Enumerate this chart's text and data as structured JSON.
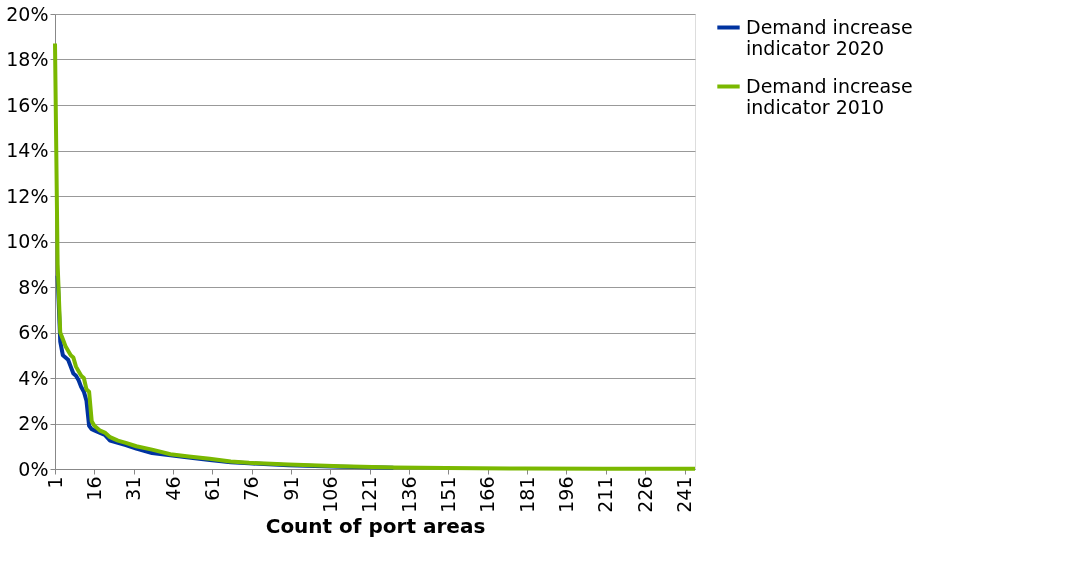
{
  "chart_data": {
    "type": "line",
    "xlabel": "Count of port areas",
    "xlim": [
      1,
      245
    ],
    "xticks": [
      1,
      16,
      31,
      46,
      61,
      76,
      91,
      106,
      121,
      136,
      151,
      166,
      181,
      196,
      211,
      226,
      241
    ],
    "ylim": [
      0,
      20
    ],
    "yticks": [
      {
        "value": 0,
        "label": "0%"
      },
      {
        "value": 2,
        "label": "2%"
      },
      {
        "value": 4,
        "label": "4%"
      },
      {
        "value": 6,
        "label": "6%"
      },
      {
        "value": 8,
        "label": "8%"
      },
      {
        "value": 10,
        "label": "10%"
      },
      {
        "value": 12,
        "label": "12%"
      },
      {
        "value": 14,
        "label": "14%"
      },
      {
        "value": 16,
        "label": "16%"
      },
      {
        "value": 18,
        "label": "18%"
      },
      {
        "value": 20,
        "label": "20%"
      }
    ],
    "grid": "y",
    "legend": "right",
    "marker": "none",
    "line_style": "solid",
    "series": [
      {
        "name": "Demand increase indicator 2020",
        "color": "#0033a0",
        "x": [
          2,
          3,
          4,
          5,
          6,
          7,
          8,
          9,
          10,
          11,
          12,
          13,
          14,
          15,
          16,
          18,
          20,
          22,
          25,
          28,
          32,
          38,
          45,
          52,
          60,
          68,
          75,
          90,
          110,
          130
        ],
        "values": [
          8.5,
          5.6,
          5.0,
          4.9,
          4.8,
          4.5,
          4.2,
          4.1,
          3.9,
          3.6,
          3.4,
          3.0,
          1.9,
          1.75,
          1.7,
          1.6,
          1.5,
          1.25,
          1.15,
          1.05,
          0.9,
          0.7,
          0.6,
          0.5,
          0.4,
          0.3,
          0.25,
          0.17,
          0.1,
          0.06
        ]
      },
      {
        "name": "Demand increase indicator 2010",
        "color": "#7ab800",
        "x": [
          1,
          2,
          3,
          4,
          5,
          6,
          7,
          8,
          9,
          10,
          11,
          12,
          13,
          14,
          15,
          16,
          18,
          20,
          22,
          25,
          28,
          32,
          38,
          45,
          52,
          60,
          68,
          75,
          90,
          110,
          130,
          150,
          180,
          210,
          245
        ],
        "values": [
          18.7,
          9.0,
          6.0,
          5.7,
          5.4,
          5.2,
          5.0,
          4.9,
          4.5,
          4.3,
          4.1,
          4.0,
          3.5,
          3.4,
          2.1,
          1.9,
          1.7,
          1.6,
          1.4,
          1.25,
          1.15,
          1.0,
          0.85,
          0.65,
          0.55,
          0.45,
          0.33,
          0.27,
          0.2,
          0.12,
          0.07,
          0.04,
          0.02,
          0.01,
          0.01
        ]
      }
    ]
  }
}
